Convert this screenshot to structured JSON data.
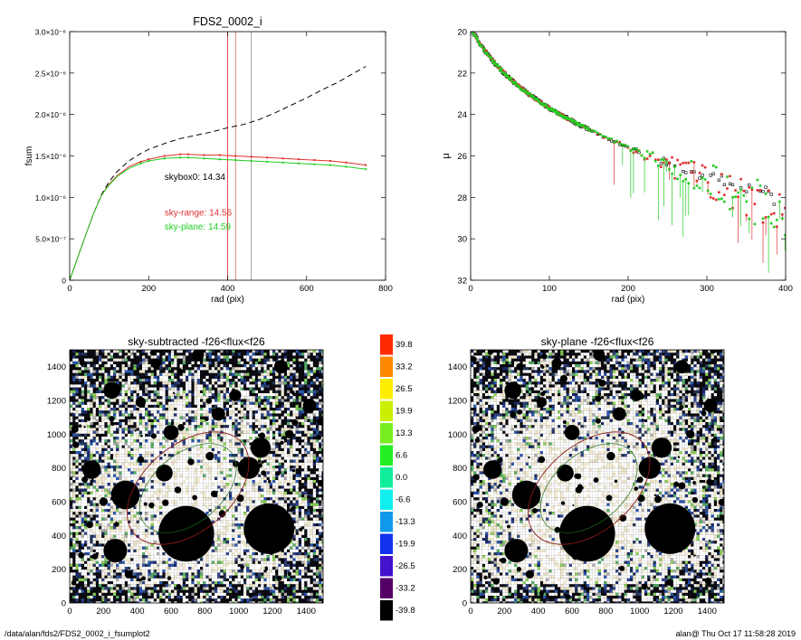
{
  "footer": {
    "path": "/data/alan/fds2/FDS2_0002_i_fsumplot2",
    "stamp": "alan@  Thu Oct 17 11:58:28 2019"
  },
  "chart_data": [
    {
      "type": "line",
      "id": "curve-of-growth",
      "title": "FDS2_0002_i",
      "xlabel": "rad (pix)",
      "ylabel": "fsum",
      "xlim": [
        0,
        800
      ],
      "ylim": [
        0,
        3e-06
      ],
      "xticks": [
        "0",
        "200",
        "400",
        "600",
        "800"
      ],
      "yticks": [
        "0",
        "5.0×10⁻⁷",
        "1.0×10⁻⁶",
        "1.5×10⁻⁶",
        "2.0×10⁻⁶",
        "2.5×10⁻⁶",
        "3.0×10⁻⁶"
      ],
      "vlines": [
        {
          "x": 400,
          "color": "#e03030"
        },
        {
          "x": 420,
          "color": "#c87878"
        },
        {
          "x": 460,
          "color": "#9a9a9a"
        }
      ],
      "annotations": [
        {
          "text": "skybox0: 14.34",
          "color": "#000000",
          "x": 240,
          "y": 1.21e-06
        },
        {
          "text": "sky-range: 14.56",
          "color": "#e03030",
          "x": 240,
          "y": 7.8e-07
        },
        {
          "text": "sky-plane: 14.59",
          "color": "#22cc22",
          "x": 240,
          "y": 6.1e-07
        }
      ],
      "series": [
        {
          "color": "#000000",
          "dash": true,
          "x": [
            0,
            20,
            40,
            60,
            80,
            100,
            120,
            150,
            180,
            200,
            240,
            280,
            320,
            360,
            400,
            440,
            480,
            520,
            560,
            600,
            640,
            680,
            720,
            750
          ],
          "values": [
            0,
            2.7e-07,
            5.4e-07,
            8e-07,
            1.03e-06,
            1.19e-06,
            1.31e-06,
            1.44e-06,
            1.53e-06,
            1.58e-06,
            1.65e-06,
            1.71e-06,
            1.75e-06,
            1.79e-06,
            1.84e-06,
            1.88e-06,
            1.94e-06,
            2.02e-06,
            2.11e-06,
            2.2e-06,
            2.3e-06,
            2.39e-06,
            2.5e-06,
            2.58e-06
          ]
        },
        {
          "color": "#e03030",
          "dash": false,
          "x": [
            0,
            20,
            40,
            60,
            80,
            100,
            120,
            150,
            180,
            200,
            240,
            280,
            300,
            340,
            380,
            420,
            460,
            500,
            540,
            580,
            620,
            660,
            700,
            750
          ],
          "values": [
            0,
            2.7e-07,
            5.4e-07,
            8e-07,
            1.02e-06,
            1.16e-06,
            1.26e-06,
            1.37e-06,
            1.43e-06,
            1.46e-06,
            1.5e-06,
            1.52e-06,
            1.52e-06,
            1.51e-06,
            1.51e-06,
            1.5e-06,
            1.49e-06,
            1.48e-06,
            1.47e-06,
            1.46e-06,
            1.45e-06,
            1.44e-06,
            1.42e-06,
            1.39e-06
          ]
        },
        {
          "color": "#22cc22",
          "dash": false,
          "x": [
            0,
            20,
            40,
            60,
            80,
            100,
            120,
            150,
            180,
            200,
            240,
            280,
            300,
            340,
            380,
            420,
            460,
            500,
            540,
            580,
            620,
            660,
            700,
            750
          ],
          "values": [
            0,
            2.7e-07,
            5.4e-07,
            8e-07,
            1.02e-06,
            1.15e-06,
            1.25e-06,
            1.35e-06,
            1.41e-06,
            1.44e-06,
            1.47e-06,
            1.48e-06,
            1.48e-06,
            1.47e-06,
            1.46e-06,
            1.45e-06,
            1.44e-06,
            1.43e-06,
            1.42e-06,
            1.41e-06,
            1.4e-06,
            1.39e-06,
            1.37e-06,
            1.34e-06
          ]
        }
      ]
    },
    {
      "type": "scatter",
      "id": "surface-brightness-profile",
      "title": "",
      "xlabel": "rad (pix)",
      "ylabel": "μ",
      "xlim": [
        0,
        400
      ],
      "ylim": [
        20,
        32
      ],
      "y_inverted": true,
      "xticks": [
        "0",
        "100",
        "200",
        "300",
        "400"
      ],
      "yticks": [
        "20",
        "22",
        "24",
        "26",
        "28",
        "30",
        "32"
      ],
      "profile": {
        "mu0": 19.8,
        "slope": 0.0425
      },
      "series": [
        {
          "color": "#000000",
          "marker": "open-square",
          "tail_scatter": 0.4,
          "tail_start": 150
        },
        {
          "color": "#e03030",
          "marker": "filled-square",
          "tail_scatter": 1.4,
          "tail_start": 170
        },
        {
          "color": "#22cc22",
          "marker": "filled-square",
          "tail_scatter": 1.8,
          "tail_start": 190
        }
      ]
    },
    {
      "type": "heatmap",
      "id": "sky-subtracted-image",
      "title": "sky-subtracted -f26<flux<f26",
      "xlim": [
        0,
        1500
      ],
      "ylim": [
        0,
        1500
      ],
      "xticks": [
        "0",
        "200",
        "400",
        "600",
        "800",
        "1000",
        "1200",
        "1400"
      ],
      "yticks": [
        "0",
        "200",
        "400",
        "600",
        "800",
        "1000",
        "1200",
        "1400"
      ],
      "white_level": 0.22
    },
    {
      "type": "heatmap",
      "id": "sky-plane-image",
      "title": "sky-plane -f26<flux<f26",
      "xlim": [
        0,
        1500
      ],
      "ylim": [
        0,
        1500
      ],
      "xticks": [
        "0",
        "200",
        "400",
        "600",
        "800",
        "1000",
        "1200",
        "1400"
      ],
      "yticks": [
        "0",
        "200",
        "400",
        "600",
        "800",
        "1000",
        "1200",
        "1400"
      ],
      "white_level": 0.34
    }
  ],
  "colorbar": {
    "labels": [
      "39.8",
      "33.2",
      "26.5",
      "19.9",
      "13.3",
      "6.6",
      "0.0",
      "-6.6",
      "-13.3",
      "-19.9",
      "-26.5",
      "-33.2",
      "-39.8"
    ],
    "colors": [
      "#ff2a00",
      "#ff8800",
      "#ffee00",
      "#ccee00",
      "#77ee22",
      "#22ee22",
      "#11ee99",
      "#11eeee",
      "#1199ee",
      "#1133ee",
      "#4411cc",
      "#550066",
      "#000000"
    ]
  },
  "masks": [
    {
      "x": 690,
      "y": 410,
      "r": 165
    },
    {
      "x": 1180,
      "y": 440,
      "r": 150
    },
    {
      "x": 330,
      "y": 640,
      "r": 85
    },
    {
      "x": 270,
      "y": 310,
      "r": 70
    },
    {
      "x": 1060,
      "y": 800,
      "r": 65
    },
    {
      "x": 1130,
      "y": 920,
      "r": 60
    },
    {
      "x": 560,
      "y": 770,
      "r": 50
    },
    {
      "x": 250,
      "y": 1260,
      "r": 50
    },
    {
      "x": 130,
      "y": 790,
      "r": 55
    },
    {
      "x": 600,
      "y": 1010,
      "r": 45
    },
    {
      "x": 1420,
      "y": 1170,
      "r": 40
    },
    {
      "x": 880,
      "y": 1120,
      "r": 40
    },
    {
      "x": 1250,
      "y": 1400,
      "r": 40
    },
    {
      "x": 760,
      "y": 1470,
      "r": 35
    },
    {
      "x": 510,
      "y": 1420,
      "r": 30
    },
    {
      "x": 980,
      "y": 1230,
      "r": 35
    },
    {
      "x": 420,
      "y": 1190,
      "r": 30
    },
    {
      "x": 30,
      "y": 1030,
      "r": 22
    },
    {
      "x": 1300,
      "y": 1000,
      "r": 25
    },
    {
      "x": 830,
      "y": 870,
      "r": 25
    },
    {
      "x": 420,
      "y": 850,
      "r": 20
    },
    {
      "x": 200,
      "y": 600,
      "r": 25
    },
    {
      "x": 350,
      "y": 170,
      "r": 25
    },
    {
      "x": 1010,
      "y": 620,
      "r": 22
    },
    {
      "x": 640,
      "y": 670,
      "r": 20
    }
  ]
}
